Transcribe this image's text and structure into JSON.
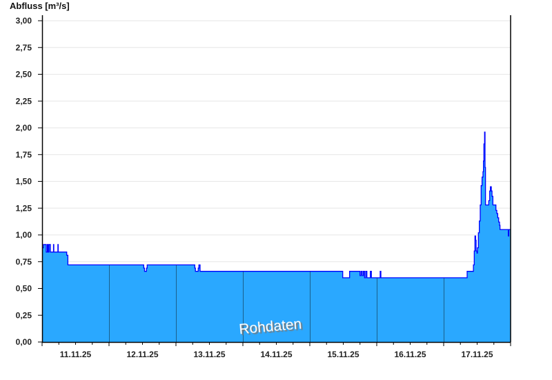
{
  "chart_data": {
    "type": "area",
    "title": "Abfluss [m³/s]",
    "ylabel": "Abfluss [m³/s]",
    "ylim": [
      0,
      3
    ],
    "yticks": [
      "0,00",
      "0,25",
      "0,50",
      "0,75",
      "1,00",
      "1,25",
      "1,50",
      "1,75",
      "2,00",
      "2,25",
      "2,50",
      "2,75",
      "3,00"
    ],
    "xlim": [
      "2025-11-11 00:00",
      "2025-11-18 00:00"
    ],
    "xtick_labels": [
      "11.11.25",
      "12.11.25",
      "13.11.25",
      "14.11.25",
      "15.11.25",
      "16.11.25",
      "17.11.25"
    ],
    "grid": true,
    "watermark": "Rohdaten",
    "colors": {
      "fill": "#2aa8ff",
      "line": "#0000ff",
      "day_lines": "#1b5f8a",
      "grid": "#e6e6e6"
    },
    "step": true,
    "points": [
      [
        "2025-11-11 00:00",
        0.88
      ],
      [
        "2025-11-11 00:30",
        0.91
      ],
      [
        "2025-11-11 01:29",
        0.84
      ],
      [
        "2025-11-11 01:53",
        0.91
      ],
      [
        "2025-11-11 02:08",
        0.84
      ],
      [
        "2025-11-11 02:28",
        0.91
      ],
      [
        "2025-11-11 02:58",
        0.84
      ],
      [
        "2025-11-11 04:05",
        0.91
      ],
      [
        "2025-11-11 04:12",
        0.84
      ],
      [
        "2025-11-11 05:40",
        0.91
      ],
      [
        "2025-11-11 05:47",
        0.84
      ],
      [
        "2025-11-11 08:50",
        0.81
      ],
      [
        "2025-11-11 09:15",
        0.72
      ],
      [
        "2025-11-12 12:27",
        0.69
      ],
      [
        "2025-11-12 12:44",
        0.66
      ],
      [
        "2025-11-12 13:26",
        0.69
      ],
      [
        "2025-11-12 13:41",
        0.72
      ],
      [
        "2025-11-13 06:45",
        0.69
      ],
      [
        "2025-11-13 06:59",
        0.66
      ],
      [
        "2025-11-13 07:59",
        0.69
      ],
      [
        "2025-11-13 08:14",
        0.72
      ],
      [
        "2025-11-13 08:39",
        0.66
      ],
      [
        "2025-11-15 11:48",
        0.6
      ],
      [
        "2025-11-15 14:16",
        0.66
      ],
      [
        "2025-11-15 17:59",
        0.62
      ],
      [
        "2025-11-15 18:23",
        0.66
      ],
      [
        "2025-11-15 18:48",
        0.62
      ],
      [
        "2025-11-15 19:13",
        0.66
      ],
      [
        "2025-11-15 19:37",
        0.6
      ],
      [
        "2025-11-15 20:02",
        0.66
      ],
      [
        "2025-11-15 20:28",
        0.6
      ],
      [
        "2025-11-15 21:42",
        0.66
      ],
      [
        "2025-11-15 22:05",
        0.6
      ],
      [
        "2025-11-16 01:14",
        0.66
      ],
      [
        "2025-11-16 01:29",
        0.6
      ],
      [
        "2025-11-17 08:25",
        0.66
      ],
      [
        "2025-11-17 10:40",
        0.72
      ],
      [
        "2025-11-17 10:58",
        0.85
      ],
      [
        "2025-11-17 11:13",
        0.99
      ],
      [
        "2025-11-17 11:27",
        0.95
      ],
      [
        "2025-11-17 11:38",
        0.85
      ],
      [
        "2025-11-17 11:57",
        0.83
      ],
      [
        "2025-11-17 12:07",
        0.88
      ],
      [
        "2025-11-17 12:27",
        1.02
      ],
      [
        "2025-11-17 12:47",
        1.13
      ],
      [
        "2025-11-17 13:07",
        1.28
      ],
      [
        "2025-11-17 13:26",
        1.46
      ],
      [
        "2025-11-17 13:46",
        1.54
      ],
      [
        "2025-11-17 14:06",
        1.59
      ],
      [
        "2025-11-17 14:16",
        1.69
      ],
      [
        "2025-11-17 14:26",
        1.85
      ],
      [
        "2025-11-17 14:40",
        1.96
      ],
      [
        "2025-11-17 14:50",
        1.63
      ],
      [
        "2025-11-17 15:00",
        1.28
      ],
      [
        "2025-11-17 16:10",
        1.32
      ],
      [
        "2025-11-17 16:30",
        1.41
      ],
      [
        "2025-11-17 16:45",
        1.45
      ],
      [
        "2025-11-17 17:05",
        1.41
      ],
      [
        "2025-11-17 17:20",
        1.36
      ],
      [
        "2025-11-17 17:39",
        1.28
      ],
      [
        "2025-11-17 18:44",
        1.23
      ],
      [
        "2025-11-17 19:03",
        1.2
      ],
      [
        "2025-11-17 19:23",
        1.16
      ],
      [
        "2025-11-17 19:43",
        1.12
      ],
      [
        "2025-11-17 20:02",
        1.09
      ],
      [
        "2025-11-17 20:12",
        1.05
      ],
      [
        "2025-11-17 23:10",
        0.99
      ],
      [
        "2025-11-17 23:20",
        1.05
      ]
    ]
  }
}
